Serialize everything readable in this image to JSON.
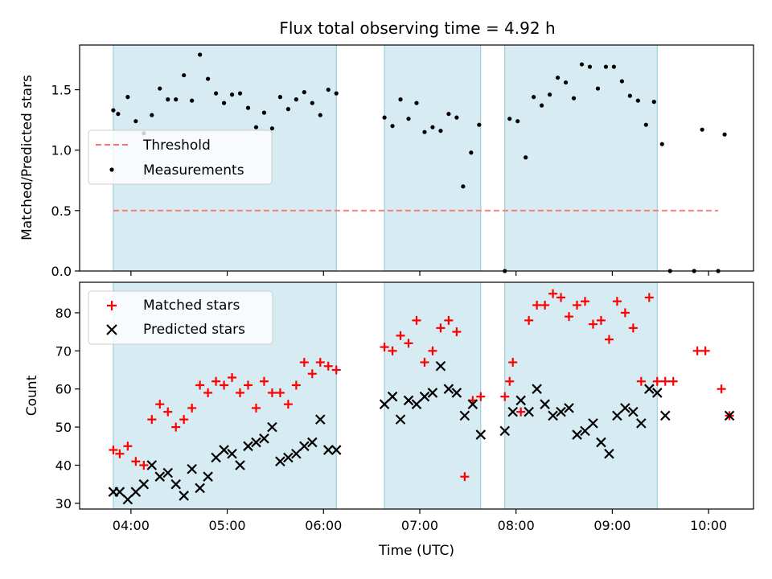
{
  "chart_data": [
    {
      "type": "scatter",
      "panel": "top",
      "title": "Flux total observing time = 4.92 h",
      "xlabel": "",
      "ylabel": "Matched/Predicted stars",
      "xlim": [
        "03:28",
        "10:28"
      ],
      "ylim": [
        0,
        1.87
      ],
      "yticks": [
        0.0,
        0.5,
        1.0,
        1.5
      ],
      "ytick_labels": [
        "0.0",
        "0.5",
        "1.0",
        "1.5"
      ],
      "xticks": [
        "04:00",
        "05:00",
        "06:00",
        "07:00",
        "08:00",
        "09:00",
        "10:00"
      ],
      "grid": false,
      "legend_position": "upper-left",
      "shaded_intervals": [
        [
          "03:49",
          "06:08"
        ],
        [
          "06:38",
          "07:38"
        ],
        [
          "07:53",
          "09:28"
        ]
      ],
      "shade_color": "#add8e6",
      "series": [
        {
          "name": "Threshold",
          "kind": "dashed-line",
          "color": "#ff6f6f",
          "x": [
            "03:49",
            "10:06"
          ],
          "y": [
            0.5,
            0.5
          ]
        },
        {
          "name": "Measurements",
          "kind": "dot",
          "color": "#000000",
          "x": [
            "03:49",
            "03:52",
            "03:58",
            "04:03",
            "04:08",
            "04:13",
            "04:18",
            "04:23",
            "04:28",
            "04:33",
            "04:38",
            "04:43",
            "04:48",
            "04:53",
            "04:58",
            "05:03",
            "05:08",
            "05:13",
            "05:18",
            "05:23",
            "05:28",
            "05:33",
            "05:38",
            "05:43",
            "05:48",
            "05:53",
            "05:58",
            "06:03",
            "06:08",
            "06:38",
            "06:43",
            "06:48",
            "06:53",
            "06:58",
            "07:03",
            "07:08",
            "07:13",
            "07:18",
            "07:23",
            "07:27",
            "07:32",
            "07:37",
            "07:53",
            "07:56",
            "08:01",
            "08:06",
            "08:11",
            "08:16",
            "08:21",
            "08:26",
            "08:31",
            "08:36",
            "08:41",
            "08:46",
            "08:51",
            "08:56",
            "09:01",
            "09:06",
            "09:11",
            "09:16",
            "09:21",
            "09:26",
            "09:31",
            "09:36",
            "09:51",
            "09:56",
            "10:06",
            "10:10"
          ],
          "y": [
            1.33,
            1.3,
            1.44,
            1.24,
            1.14,
            1.29,
            1.51,
            1.42,
            1.42,
            1.62,
            1.41,
            1.79,
            1.59,
            1.47,
            1.39,
            1.46,
            1.47,
            1.35,
            1.19,
            1.31,
            1.18,
            1.44,
            1.34,
            1.42,
            1.48,
            1.39,
            1.29,
            1.5,
            1.47,
            1.27,
            1.2,
            1.42,
            1.26,
            1.39,
            1.15,
            1.19,
            1.16,
            1.3,
            1.27,
            0.7,
            0.98,
            1.21,
            0.0,
            1.26,
            1.24,
            0.94,
            1.44,
            1.37,
            1.46,
            1.6,
            1.56,
            1.43,
            1.71,
            1.69,
            1.51,
            1.69,
            1.69,
            1.57,
            1.45,
            1.41,
            1.21,
            1.4,
            1.05,
            0.0,
            0.0,
            1.17,
            0.0,
            1.13
          ]
        }
      ]
    },
    {
      "type": "scatter",
      "panel": "bottom",
      "title": "",
      "xlabel": "Time (UTC)",
      "ylabel": "Count",
      "xlim": [
        "03:28",
        "10:28"
      ],
      "ylim": [
        28.5,
        88
      ],
      "yticks": [
        30,
        40,
        50,
        60,
        70,
        80
      ],
      "ytick_labels": [
        "30",
        "40",
        "50",
        "60",
        "70",
        "80"
      ],
      "xticks": [
        "04:00",
        "05:00",
        "06:00",
        "07:00",
        "08:00",
        "09:00",
        "10:00"
      ],
      "xtick_labels": [
        "04:00",
        "05:00",
        "06:00",
        "07:00",
        "08:00",
        "09:00",
        "10:00"
      ],
      "grid": false,
      "legend_position": "upper-left",
      "shaded_intervals": [
        [
          "03:49",
          "06:08"
        ],
        [
          "06:38",
          "07:38"
        ],
        [
          "07:53",
          "09:28"
        ]
      ],
      "shade_color": "#add8e6",
      "series": [
        {
          "name": "Matched stars",
          "kind": "plus",
          "color": "#ff0000",
          "x": [
            "03:49",
            "03:53",
            "03:58",
            "04:03",
            "04:08",
            "04:13",
            "04:18",
            "04:23",
            "04:28",
            "04:33",
            "04:38",
            "04:43",
            "04:48",
            "04:53",
            "04:58",
            "05:03",
            "05:08",
            "05:13",
            "05:18",
            "05:23",
            "05:28",
            "05:33",
            "05:38",
            "05:43",
            "05:48",
            "05:53",
            "05:58",
            "06:03",
            "06:08",
            "06:38",
            "06:43",
            "06:48",
            "06:53",
            "06:58",
            "07:03",
            "07:08",
            "07:13",
            "07:18",
            "07:23",
            "07:28",
            "07:33",
            "07:38",
            "07:53",
            "07:56",
            "07:58",
            "08:03",
            "08:08",
            "08:13",
            "08:18",
            "08:23",
            "08:28",
            "08:33",
            "08:38",
            "08:43",
            "08:48",
            "08:53",
            "08:58",
            "09:03",
            "09:08",
            "09:13",
            "09:18",
            "09:23",
            "09:28",
            "09:33",
            "09:38",
            "09:53",
            "09:58",
            "10:08",
            "10:13"
          ],
          "y": [
            44,
            43,
            45,
            41,
            40,
            52,
            56,
            54,
            50,
            52,
            55,
            61,
            59,
            62,
            61,
            63,
            59,
            61,
            55,
            62,
            59,
            59,
            56,
            61,
            67,
            64,
            67,
            66,
            65,
            71,
            70,
            74,
            72,
            78,
            67,
            70,
            76,
            78,
            75,
            37,
            57,
            58,
            58,
            62,
            67,
            54,
            78,
            82,
            82,
            85,
            84,
            79,
            82,
            83,
            77,
            78,
            73,
            83,
            80,
            76,
            62,
            84,
            62,
            62,
            62,
            70,
            70,
            60,
            53
          ]
        },
        {
          "name": "Predicted stars",
          "kind": "x",
          "color": "#000000",
          "x": [
            "03:49",
            "03:53",
            "03:58",
            "04:03",
            "04:08",
            "04:13",
            "04:18",
            "04:23",
            "04:28",
            "04:33",
            "04:38",
            "04:43",
            "04:48",
            "04:53",
            "04:58",
            "05:03",
            "05:08",
            "05:13",
            "05:18",
            "05:23",
            "05:28",
            "05:33",
            "05:38",
            "05:43",
            "05:48",
            "05:53",
            "05:58",
            "06:03",
            "06:08",
            "06:38",
            "06:43",
            "06:48",
            "06:53",
            "06:58",
            "07:03",
            "07:08",
            "07:13",
            "07:18",
            "07:23",
            "07:28",
            "07:33",
            "07:38",
            "07:53",
            "07:58",
            "08:03",
            "08:08",
            "08:13",
            "08:18",
            "08:23",
            "08:28",
            "08:33",
            "08:38",
            "08:43",
            "08:48",
            "08:53",
            "08:58",
            "09:03",
            "09:08",
            "09:13",
            "09:18",
            "09:23",
            "09:28",
            "09:33",
            "10:13"
          ],
          "y": [
            33,
            33,
            31,
            33,
            35,
            40,
            37,
            38,
            35,
            32,
            39,
            34,
            37,
            42,
            44,
            43,
            40,
            45,
            46,
            47,
            50,
            41,
            42,
            43,
            45,
            46,
            52,
            44,
            44,
            56,
            58,
            52,
            57,
            56,
            58,
            59,
            66,
            60,
            59,
            53,
            56,
            48,
            49,
            54,
            57,
            54,
            60,
            56,
            53,
            54,
            55,
            48,
            49,
            51,
            46,
            43,
            53,
            55,
            54,
            51,
            60,
            59,
            53,
            53
          ]
        }
      ]
    }
  ]
}
